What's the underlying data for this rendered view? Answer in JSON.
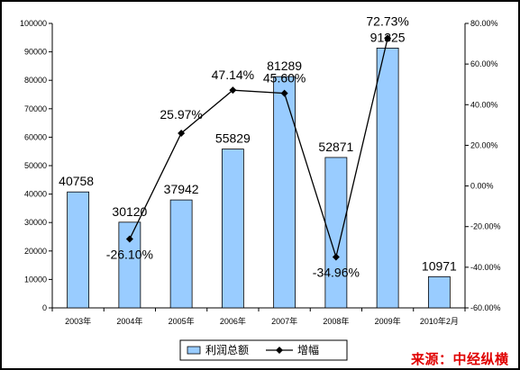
{
  "chart_data": {
    "type": "bar",
    "categories": [
      "2003年",
      "2004年",
      "2005年",
      "2006年",
      "2007年",
      "2008年",
      "2009年",
      "2010年2月"
    ],
    "series": [
      {
        "name": "利润总额",
        "type": "bar",
        "axis": "left",
        "values": [
          40758,
          30120,
          37942,
          55829,
          81289,
          52871,
          91325,
          10971
        ],
        "labels": [
          "40758",
          "30120",
          "37942",
          "55829",
          "81289",
          "52871",
          "91325",
          "10971"
        ],
        "color": "#99ccff"
      },
      {
        "name": "增幅",
        "type": "line",
        "axis": "right",
        "values": [
          null,
          -26.1,
          25.97,
          47.14,
          45.6,
          -34.96,
          72.73,
          null
        ],
        "labels": [
          "",
          "-26.10%",
          "25.97%",
          "47.14%",
          "45.60%",
          "-34.96%",
          "72.73%",
          ""
        ],
        "color": "#000000"
      }
    ],
    "ylim": [
      0,
      100000
    ],
    "yticks": [
      "0",
      "10000",
      "20000",
      "30000",
      "40000",
      "50000",
      "60000",
      "70000",
      "80000",
      "90000",
      "100000"
    ],
    "y2lim": [
      -60,
      80
    ],
    "y2ticks": [
      "-60.00%",
      "-40.00%",
      "-20.00%",
      "0.00%",
      "20.00%",
      "40.00%",
      "60.00%",
      "80.00%"
    ],
    "legend": {
      "position": "bottom",
      "items": [
        "利润总额",
        "增幅"
      ]
    },
    "grid": false
  },
  "source_note": "来源：中经纵横"
}
